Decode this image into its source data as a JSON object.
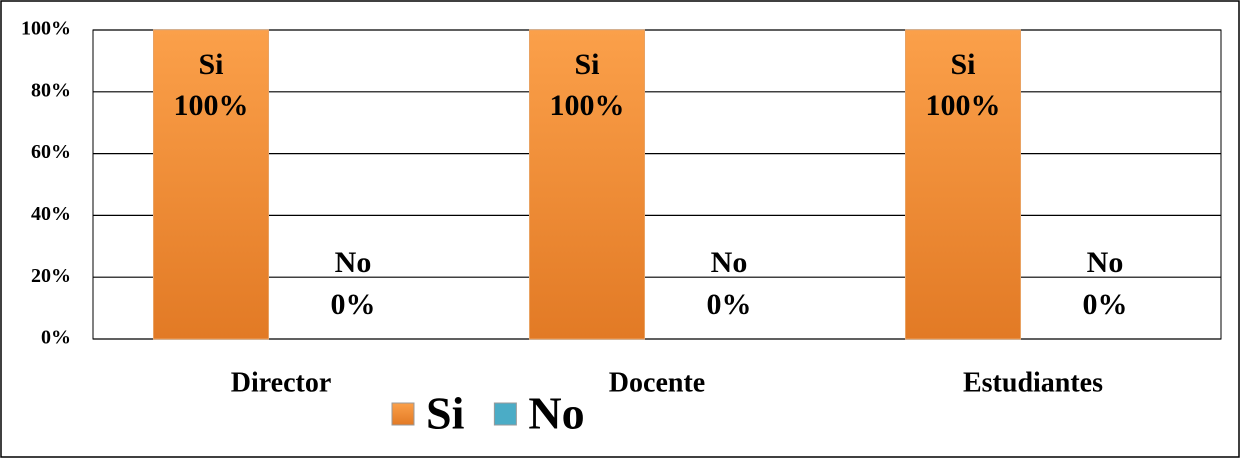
{
  "chart_data": {
    "type": "bar",
    "categories": [
      "Director",
      "Docente",
      "Estudiantes"
    ],
    "series": [
      {
        "name": "Si",
        "color": "#f7963b",
        "values": [
          100,
          100,
          100
        ],
        "value_labels": [
          "100%",
          "100%",
          "100%"
        ]
      },
      {
        "name": "No",
        "color": "#4bacc6",
        "values": [
          0,
          0,
          0
        ],
        "value_labels": [
          "0%",
          "0%",
          "0%"
        ]
      }
    ],
    "ylim": [
      0,
      100
    ],
    "yticks": [
      {
        "value": 0,
        "label": "0%"
      },
      {
        "value": 20,
        "label": "20%"
      },
      {
        "value": 40,
        "label": "40%"
      },
      {
        "value": 60,
        "label": "60%"
      },
      {
        "value": 80,
        "label": "80%"
      },
      {
        "value": 100,
        "label": "100%"
      }
    ],
    "grid": true,
    "legend": "bottom"
  }
}
